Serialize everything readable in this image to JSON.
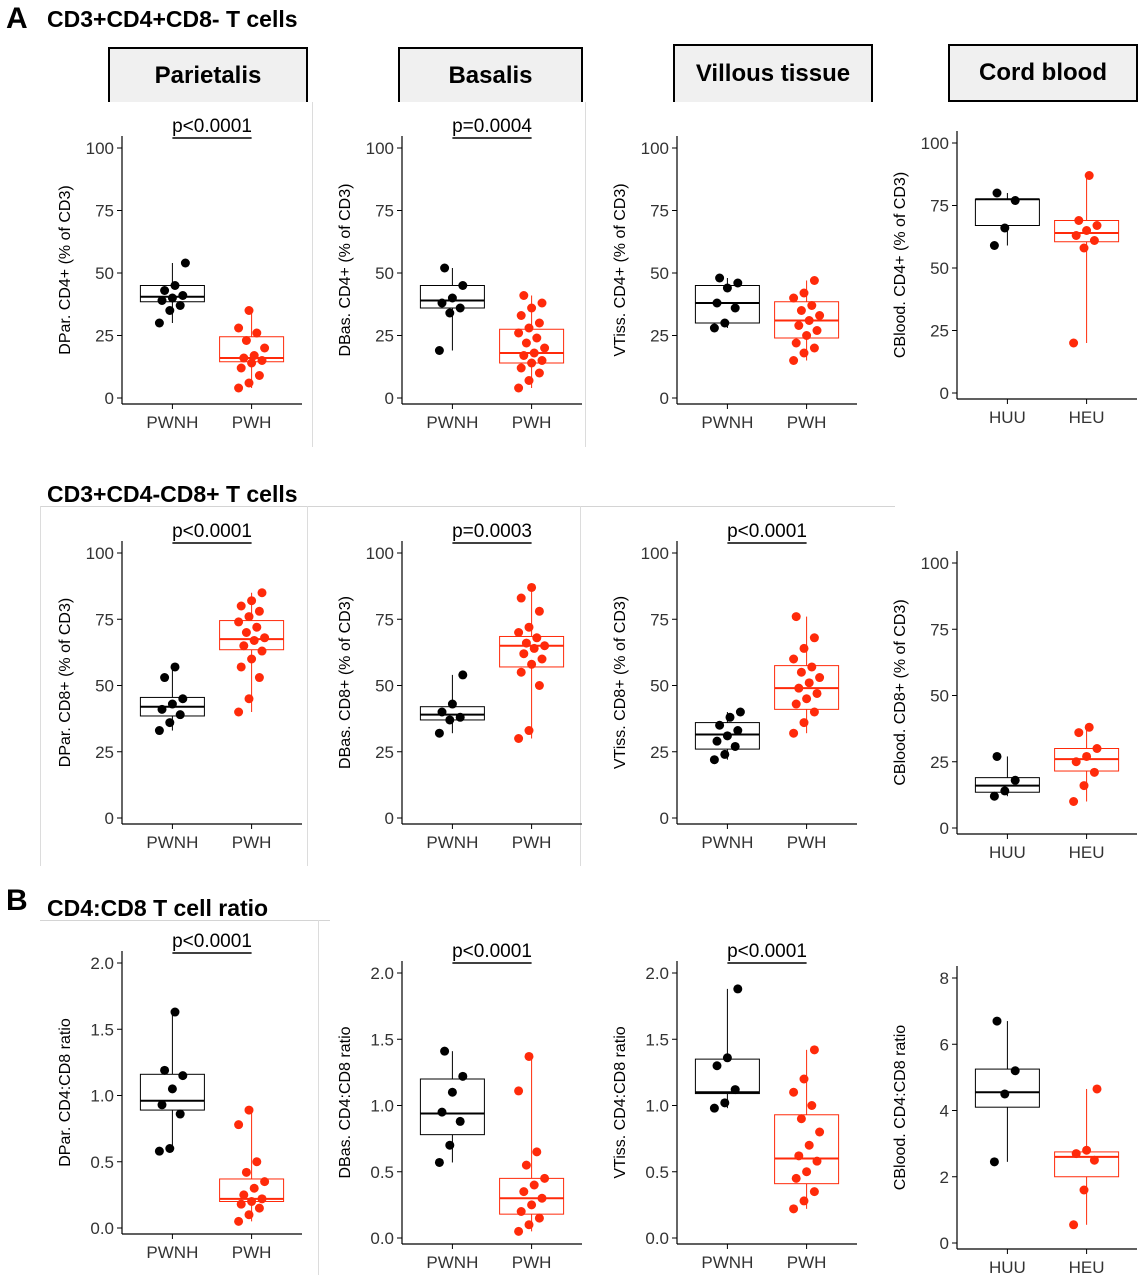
{
  "panels": {
    "a": {
      "letter": "A",
      "title": "CD3+CD4+CD8- T cells"
    },
    "a2": {
      "title": "CD3+CD4-CD8+ T cells"
    },
    "b": {
      "letter": "B",
      "title": "CD4:CD8 T cell ratio"
    }
  },
  "tissues": [
    "Parietalis",
    "Basalis",
    "Villous tissue",
    "Cord blood"
  ],
  "colors": {
    "group1": "#000000",
    "group2": "#ff2a0a",
    "axis": "#000000"
  },
  "chart_data": [
    {
      "type": "box",
      "title": "",
      "ylabel": "DPar. CD4+ (% of CD3)",
      "categories": [
        "PWNH",
        "PWH"
      ],
      "ylim": [
        0,
        100
      ],
      "yticks": [
        0,
        25,
        50,
        75,
        100
      ],
      "pvalue": "p<0.0001",
      "series": [
        {
          "name": "PWNH",
          "q1": 38.5,
          "median": 40.5,
          "q3": 45,
          "whisker_low": 30,
          "whisker_high": 54,
          "points": [
            30,
            35,
            37,
            39,
            40,
            41,
            43,
            45,
            54
          ]
        },
        {
          "name": "PWH",
          "q1": 14.5,
          "median": 16,
          "q3": 24.5,
          "whisker_low": 4,
          "whisker_high": 35,
          "points": [
            4,
            6,
            9,
            12,
            14,
            15,
            16,
            17,
            20,
            23,
            26,
            28,
            35
          ]
        }
      ]
    },
    {
      "type": "box",
      "title": "",
      "ylabel": "DBas. CD4+ (% of CD3)",
      "categories": [
        "PWNH",
        "PWH"
      ],
      "ylim": [
        0,
        100
      ],
      "yticks": [
        0,
        25,
        50,
        75,
        100
      ],
      "pvalue": "p=0.0004",
      "series": [
        {
          "name": "PWNH",
          "q1": 36,
          "median": 39,
          "q3": 45,
          "whisker_low": 19,
          "whisker_high": 52,
          "points": [
            19,
            34,
            36,
            38,
            40,
            45,
            52
          ]
        },
        {
          "name": "PWH",
          "q1": 14,
          "median": 18,
          "q3": 27.5,
          "whisker_low": 4,
          "whisker_high": 41,
          "points": [
            4,
            7,
            10,
            12,
            14,
            15,
            17,
            18,
            20,
            22,
            24,
            26,
            28,
            30,
            33,
            36,
            38,
            41
          ]
        }
      ]
    },
    {
      "type": "box",
      "title": "",
      "ylabel": "VTiss. CD4+ (% of CD3)",
      "categories": [
        "PWNH",
        "PWH"
      ],
      "ylim": [
        0,
        100
      ],
      "yticks": [
        0,
        25,
        50,
        75,
        100
      ],
      "pvalue": "",
      "series": [
        {
          "name": "PWNH",
          "q1": 30,
          "median": 38,
          "q3": 45,
          "whisker_low": 28,
          "whisker_high": 48,
          "points": [
            28,
            30,
            36,
            38,
            44,
            46,
            48
          ]
        },
        {
          "name": "PWH",
          "q1": 24,
          "median": 31,
          "q3": 38.5,
          "whisker_low": 15,
          "whisker_high": 47,
          "points": [
            15,
            18,
            20,
            22,
            25,
            27,
            29,
            31,
            33,
            35,
            37,
            40,
            42,
            47
          ]
        }
      ]
    },
    {
      "type": "box",
      "title": "",
      "ylabel": "CBlood. CD4+ (% of CD3)",
      "categories": [
        "HUU",
        "HEU"
      ],
      "ylim": [
        0,
        100
      ],
      "yticks": [
        0,
        25,
        50,
        75,
        100
      ],
      "pvalue": "",
      "series": [
        {
          "name": "HUU",
          "q1": 67,
          "median": 77.5,
          "q3": 77.5,
          "whisker_low": 59,
          "whisker_high": 80,
          "points": [
            59,
            66,
            77,
            80
          ]
        },
        {
          "name": "HEU",
          "q1": 60.5,
          "median": 64,
          "q3": 69,
          "whisker_low": 20,
          "whisker_high": 87,
          "points": [
            20,
            58,
            61,
            63,
            65,
            67,
            69,
            87
          ]
        }
      ]
    },
    {
      "type": "box",
      "title": "",
      "ylabel": "DPar. CD8+ (% of CD3)",
      "categories": [
        "PWNH",
        "PWH"
      ],
      "ylim": [
        0,
        100
      ],
      "yticks": [
        0,
        25,
        50,
        75,
        100
      ],
      "pvalue": "p<0.0001",
      "series": [
        {
          "name": "PWNH",
          "q1": 38.5,
          "median": 42,
          "q3": 45.5,
          "whisker_low": 33,
          "whisker_high": 57,
          "points": [
            33,
            36,
            39,
            41,
            43,
            45,
            53,
            57
          ]
        },
        {
          "name": "PWH",
          "q1": 63.5,
          "median": 67.5,
          "q3": 74.5,
          "whisker_low": 40,
          "whisker_high": 85,
          "points": [
            40,
            45,
            53,
            57,
            60,
            63,
            65,
            67,
            68,
            70,
            72,
            74,
            76,
            78,
            80,
            82,
            85
          ]
        }
      ]
    },
    {
      "type": "box",
      "title": "",
      "ylabel": "DBas. CD8+ (% of CD3)",
      "categories": [
        "PWNH",
        "PWH"
      ],
      "ylim": [
        0,
        100
      ],
      "yticks": [
        0,
        25,
        50,
        75,
        100
      ],
      "pvalue": "p=0.0003",
      "series": [
        {
          "name": "PWNH",
          "q1": 37,
          "median": 39,
          "q3": 42,
          "whisker_low": 32,
          "whisker_high": 54,
          "points": [
            32,
            37,
            38,
            40,
            43,
            54
          ]
        },
        {
          "name": "PWH",
          "q1": 57,
          "median": 65,
          "q3": 68.5,
          "whisker_low": 30,
          "whisker_high": 87,
          "points": [
            30,
            33,
            50,
            55,
            58,
            60,
            62,
            64,
            65,
            66,
            68,
            70,
            72,
            78,
            83,
            87
          ]
        }
      ]
    },
    {
      "type": "box",
      "title": "",
      "ylabel": "VTiss. CD8+ (% of CD3)",
      "categories": [
        "PWNH",
        "PWH"
      ],
      "ylim": [
        0,
        100
      ],
      "yticks": [
        0,
        25,
        50,
        75,
        100
      ],
      "pvalue": "p<0.0001",
      "series": [
        {
          "name": "PWNH",
          "q1": 26,
          "median": 31.5,
          "q3": 36,
          "whisker_low": 22,
          "whisker_high": 40,
          "points": [
            22,
            24,
            27,
            29,
            31,
            33,
            35,
            38,
            40
          ]
        },
        {
          "name": "PWH",
          "q1": 41,
          "median": 49,
          "q3": 57.5,
          "whisker_low": 32,
          "whisker_high": 76,
          "points": [
            32,
            36,
            40,
            43,
            45,
            47,
            49,
            51,
            53,
            55,
            57,
            60,
            64,
            68,
            76
          ]
        }
      ]
    },
    {
      "type": "box",
      "title": "",
      "ylabel": "CBlood. CD8+ (% of CD3)",
      "categories": [
        "HUU",
        "HEU"
      ],
      "ylim": [
        0,
        100
      ],
      "yticks": [
        0,
        25,
        50,
        75,
        100
      ],
      "pvalue": "",
      "series": [
        {
          "name": "HUU",
          "q1": 13.5,
          "median": 16,
          "q3": 19,
          "whisker_low": 12,
          "whisker_high": 27,
          "points": [
            12,
            14,
            18,
            27
          ]
        },
        {
          "name": "HEU",
          "q1": 21.5,
          "median": 26,
          "q3": 30,
          "whisker_low": 10,
          "whisker_high": 38,
          "points": [
            10,
            16,
            21,
            25,
            27,
            30,
            36,
            38
          ]
        }
      ]
    },
    {
      "type": "box",
      "title": "",
      "ylabel": "DPar. CD4:CD8 ratio",
      "categories": [
        "PWNH",
        "PWH"
      ],
      "ylim": [
        0,
        2.0
      ],
      "yticks": [
        0.0,
        0.5,
        1.0,
        1.5,
        2.0
      ],
      "pvalue": "p<0.0001",
      "series": [
        {
          "name": "PWNH",
          "q1": 0.89,
          "median": 0.96,
          "q3": 1.16,
          "whisker_low": 0.58,
          "whisker_high": 1.63,
          "points": [
            0.58,
            0.6,
            0.86,
            0.93,
            1.05,
            1.15,
            1.19,
            1.63
          ]
        },
        {
          "name": "PWH",
          "q1": 0.2,
          "median": 0.22,
          "q3": 0.37,
          "whisker_low": 0.05,
          "whisker_high": 0.89,
          "points": [
            0.05,
            0.1,
            0.15,
            0.18,
            0.2,
            0.22,
            0.25,
            0.3,
            0.35,
            0.42,
            0.5,
            0.78,
            0.89
          ]
        }
      ]
    },
    {
      "type": "box",
      "title": "",
      "ylabel": "DBas. CD4:CD8 ratio",
      "categories": [
        "PWNH",
        "PWH"
      ],
      "ylim": [
        0,
        2.0
      ],
      "yticks": [
        0.0,
        0.5,
        1.0,
        1.5,
        2.0
      ],
      "pvalue": "p<0.0001",
      "series": [
        {
          "name": "PWNH",
          "q1": 0.78,
          "median": 0.94,
          "q3": 1.2,
          "whisker_low": 0.57,
          "whisker_high": 1.41,
          "points": [
            0.57,
            0.7,
            0.88,
            0.95,
            1.1,
            1.22,
            1.41
          ]
        },
        {
          "name": "PWH",
          "q1": 0.18,
          "median": 0.3,
          "q3": 0.45,
          "whisker_low": 0.05,
          "whisker_high": 1.37,
          "points": [
            0.05,
            0.1,
            0.15,
            0.2,
            0.25,
            0.3,
            0.35,
            0.4,
            0.45,
            0.55,
            0.65,
            1.11,
            1.37
          ]
        }
      ]
    },
    {
      "type": "box",
      "title": "",
      "ylabel": "VTiss. CD4:CD8 ratio",
      "categories": [
        "PWNH",
        "PWH"
      ],
      "ylim": [
        0,
        2.0
      ],
      "yticks": [
        0.0,
        0.5,
        1.0,
        1.5,
        2.0
      ],
      "pvalue": "p<0.0001",
      "series": [
        {
          "name": "PWNH",
          "q1": 1.09,
          "median": 1.1,
          "q3": 1.35,
          "whisker_low": 0.98,
          "whisker_high": 1.88,
          "points": [
            0.98,
            1.02,
            1.12,
            1.3,
            1.36,
            1.88
          ]
        },
        {
          "name": "PWH",
          "q1": 0.41,
          "median": 0.6,
          "q3": 0.93,
          "whisker_low": 0.22,
          "whisker_high": 1.42,
          "points": [
            0.22,
            0.28,
            0.35,
            0.45,
            0.5,
            0.58,
            0.62,
            0.7,
            0.8,
            0.9,
            1.0,
            1.1,
            1.2,
            1.42
          ]
        }
      ]
    },
    {
      "type": "box",
      "title": "",
      "ylabel": "CBlood. CD4:CD8 ratio",
      "categories": [
        "HUU",
        "HEU"
      ],
      "ylim": [
        0,
        8
      ],
      "yticks": [
        0,
        2,
        4,
        6,
        8
      ],
      "pvalue": "",
      "series": [
        {
          "name": "HUU",
          "q1": 4.1,
          "median": 4.55,
          "q3": 5.25,
          "whisker_low": 2.45,
          "whisker_high": 6.7,
          "points": [
            2.45,
            4.5,
            5.2,
            6.7
          ]
        },
        {
          "name": "HEU",
          "q1": 2.0,
          "median": 2.6,
          "q3": 2.75,
          "whisker_low": 0.55,
          "whisker_high": 4.65,
          "points": [
            0.55,
            1.6,
            2.5,
            2.7,
            2.8,
            4.65
          ]
        }
      ]
    }
  ]
}
